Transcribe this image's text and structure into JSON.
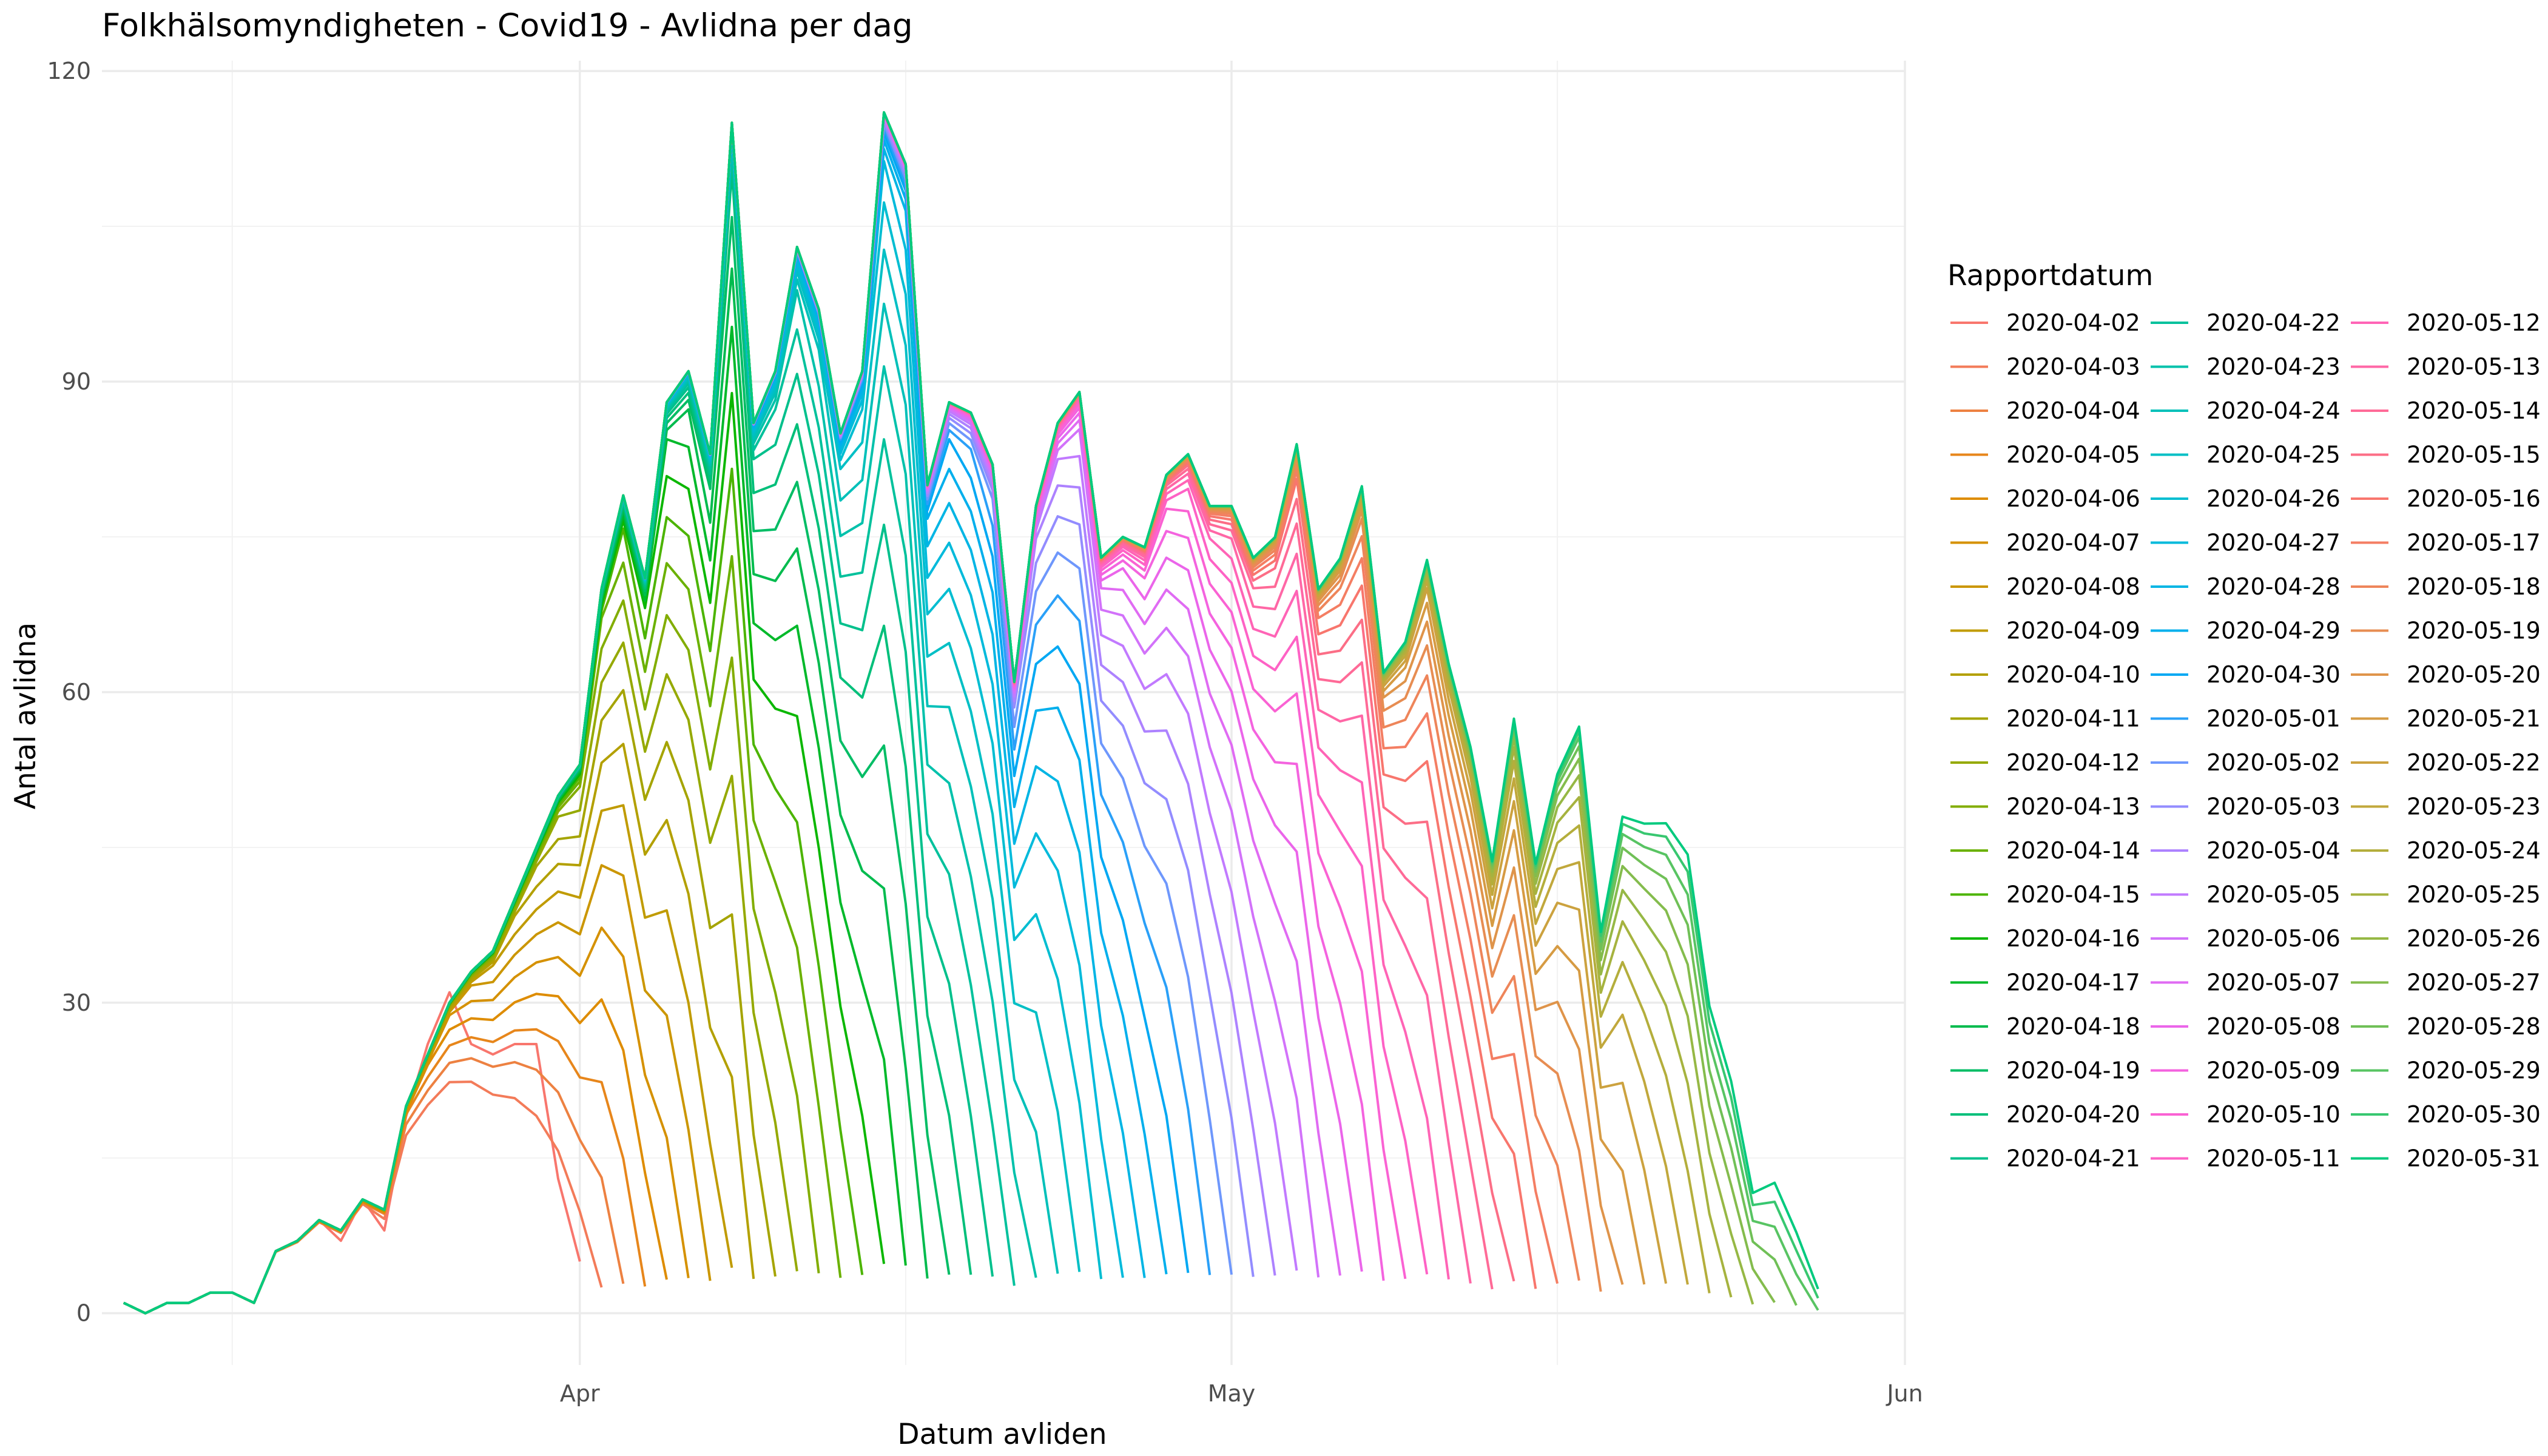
{
  "chart_data": {
    "type": "line",
    "title": "Folkhälsomyndigheten - Covid19 - Avlidna per dag",
    "xlabel": "Datum avliden",
    "ylabel": "Antal avlidna",
    "ylim": [
      -5,
      121
    ],
    "xlim": [
      "2020-03-10",
      "2020-06-01"
    ],
    "y_ticks": [
      0,
      30,
      60,
      90,
      120
    ],
    "x_ticks": [
      {
        "date": "2020-04-01",
        "label": "Apr"
      },
      {
        "date": "2020-05-01",
        "label": "May"
      },
      {
        "date": "2020-06-01",
        "label": "Jun"
      }
    ],
    "x_minor_ticks": [
      "2020-03-16",
      "2020-04-16",
      "2020-05-16"
    ],
    "grid": true,
    "legend_title": "Rapportdatum",
    "legend_position": "right",
    "legend_columns": 3,
    "series_names": [
      "2020-04-02",
      "2020-04-03",
      "2020-04-04",
      "2020-04-05",
      "2020-04-06",
      "2020-04-07",
      "2020-04-08",
      "2020-04-09",
      "2020-04-10",
      "2020-04-11",
      "2020-04-12",
      "2020-04-13",
      "2020-04-14",
      "2020-04-15",
      "2020-04-16",
      "2020-04-17",
      "2020-04-18",
      "2020-04-19",
      "2020-04-20",
      "2020-04-21",
      "2020-04-22",
      "2020-04-23",
      "2020-04-24",
      "2020-04-25",
      "2020-04-26",
      "2020-04-27",
      "2020-04-28",
      "2020-04-29",
      "2020-04-30",
      "2020-05-01",
      "2020-05-02",
      "2020-05-03",
      "2020-05-04",
      "2020-05-05",
      "2020-05-06",
      "2020-05-07",
      "2020-05-08",
      "2020-05-09",
      "2020-05-10",
      "2020-05-11",
      "2020-05-12",
      "2020-05-13",
      "2020-05-14",
      "2020-05-15",
      "2020-05-16",
      "2020-05-17",
      "2020-05-18",
      "2020-05-19",
      "2020-05-20",
      "2020-05-21",
      "2020-05-22",
      "2020-05-23",
      "2020-05-24",
      "2020-05-25",
      "2020-05-26",
      "2020-05-27",
      "2020-05-28",
      "2020-05-29",
      "2020-05-30",
      "2020-05-31"
    ],
    "final_dates": [
      "2020-03-11",
      "2020-03-12",
      "2020-03-13",
      "2020-03-14",
      "2020-03-15",
      "2020-03-16",
      "2020-03-17",
      "2020-03-18",
      "2020-03-19",
      "2020-03-20",
      "2020-03-21",
      "2020-03-22",
      "2020-03-23",
      "2020-03-24",
      "2020-03-25",
      "2020-03-26",
      "2020-03-27",
      "2020-03-28",
      "2020-03-29",
      "2020-03-30",
      "2020-03-31",
      "2020-04-01",
      "2020-04-02",
      "2020-04-03",
      "2020-04-04",
      "2020-04-05",
      "2020-04-06",
      "2020-04-07",
      "2020-04-08",
      "2020-04-09",
      "2020-04-10",
      "2020-04-11",
      "2020-04-12",
      "2020-04-13",
      "2020-04-14",
      "2020-04-15",
      "2020-04-16",
      "2020-04-17",
      "2020-04-18",
      "2020-04-19",
      "2020-04-20",
      "2020-04-21",
      "2020-04-22",
      "2020-04-23",
      "2020-04-24",
      "2020-04-25",
      "2020-04-26",
      "2020-04-27",
      "2020-04-28",
      "2020-04-29",
      "2020-04-30",
      "2020-05-01",
      "2020-05-02",
      "2020-05-03",
      "2020-05-04",
      "2020-05-05",
      "2020-05-06",
      "2020-05-07",
      "2020-05-08",
      "2020-05-09",
      "2020-05-10",
      "2020-05-11",
      "2020-05-12",
      "2020-05-13",
      "2020-05-14",
      "2020-05-15",
      "2020-05-16",
      "2020-05-17",
      "2020-05-18",
      "2020-05-19",
      "2020-05-20",
      "2020-05-21",
      "2020-05-22",
      "2020-05-23",
      "2020-05-24",
      "2020-05-25",
      "2020-05-26",
      "2020-05-27",
      "2020-05-28",
      "2020-05-29",
      "2020-05-30",
      "2020-05-31"
    ],
    "final_values": [
      1,
      0,
      1,
      1,
      2,
      2,
      1,
      6,
      7,
      9,
      8,
      11,
      10,
      20,
      25,
      30,
      33,
      35,
      40,
      45,
      50,
      53,
      70,
      79,
      71,
      88,
      91,
      83,
      115,
      86,
      91,
      103,
      97,
      85,
      91,
      116,
      111,
      80,
      88,
      87,
      82,
      61,
      78,
      86,
      89,
      73,
      75,
      74,
      81,
      83,
      78,
      78,
      73,
      75,
      84,
      70,
      73,
      80,
      62,
      65,
      73,
      63,
      55,
      44,
      58,
      44,
      53,
      58,
      38,
      50,
      50,
      51,
      49,
      34,
      27,
      15,
      18,
      13,
      5,
      null,
      null,
      null
    ],
    "first_report_values": [
      1,
      0,
      1,
      1,
      2,
      2,
      1,
      6,
      7,
      9,
      7,
      11,
      8,
      19,
      26,
      31,
      26,
      25,
      26,
      26,
      13,
      5
    ],
    "series_colors": [
      "#F8766D",
      "#F37B59",
      "#ED8141",
      "#E7861B",
      "#DE8C00",
      "#D59100",
      "#CB9600",
      "#C09B00",
      "#B3A000",
      "#A5A400",
      "#95A900",
      "#82AD00",
      "#6BB100",
      "#4CB400",
      "#0BB700",
      "#00B92A",
      "#00BB4E",
      "#00BD65",
      "#00BF7A",
      "#00C08C",
      "#00C19C",
      "#00C1AB",
      "#00C0B9",
      "#00BFC5",
      "#00BDD1",
      "#00BADB",
      "#00B5E4",
      "#00AFEC",
      "#00A8F3",
      "#2AA0F8",
      "#6E97FC",
      "#938CFF",
      "#AD82FF",
      "#C17AFF",
      "#D272FA",
      "#E06BF3",
      "#EB65EA",
      "#F463DF",
      "#FA62D3",
      "#FE62C5",
      "#FF64B6",
      "#FF67A6",
      "#FF6A97",
      "#FC6E86",
      "#F8766D",
      "#F47E63",
      "#EE855A",
      "#E78D52",
      "#DF944A",
      "#D69B43",
      "#CCA23F",
      "#C1A83C",
      "#B4AE3C",
      "#A6B33F",
      "#96B845",
      "#84BC4D",
      "#70C057",
      "#58C463",
      "#38C770",
      "#00CA7E"
    ]
  }
}
